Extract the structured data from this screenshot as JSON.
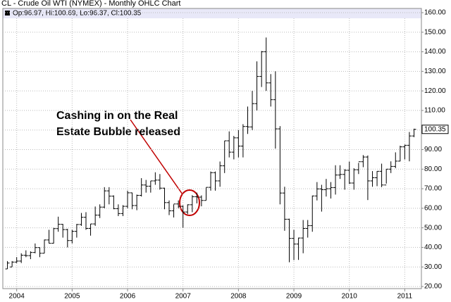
{
  "chart_data": {
    "type": "ohlc",
    "title": "CL - Crude Oil WTI (NYMEX) - Monthly OHLC Chart",
    "header": "Op:96.97, Hi:100.69, Lo:96.37, Cl:100.35",
    "annotation": [
      "Cashing in on the Real",
      "Estate Bubble released"
    ],
    "color": "#000000",
    "grid": true,
    "xlim": [
      2003.75,
      2011.3
    ],
    "xticks": [
      2004,
      2005,
      2006,
      2007,
      2008,
      2009,
      2010,
      2011
    ],
    "ylim": [
      20,
      160
    ],
    "yticks": [
      {
        "value": 20,
        "label": "20.00"
      },
      {
        "value": 30,
        "label": "30.00"
      },
      {
        "value": 40,
        "label": "40.00"
      },
      {
        "value": 50,
        "label": "50.00"
      },
      {
        "value": 60,
        "label": "60.00"
      },
      {
        "value": 70,
        "label": "70.00"
      },
      {
        "value": 80,
        "label": "80.00"
      },
      {
        "value": 90,
        "label": "90.00"
      },
      {
        "value": 100,
        "label": "100.00"
      },
      {
        "value": 110,
        "label": "110.00"
      },
      {
        "value": 120,
        "label": "120.00"
      },
      {
        "value": 130,
        "label": "130.00"
      },
      {
        "value": 140,
        "label": "140.00"
      },
      {
        "value": 150,
        "label": "150.00"
      },
      {
        "value": 160,
        "label": "160.00"
      }
    ],
    "last_label": "100.35",
    "x": [
      2003.833,
      2003.917,
      2004,
      2004.083,
      2004.167,
      2004.25,
      2004.333,
      2004.417,
      2004.5,
      2004.583,
      2004.667,
      2004.75,
      2004.833,
      2004.917,
      2005,
      2005.083,
      2005.167,
      2005.25,
      2005.333,
      2005.417,
      2005.5,
      2005.583,
      2005.667,
      2005.75,
      2005.833,
      2005.917,
      2006,
      2006.083,
      2006.167,
      2006.25,
      2006.333,
      2006.417,
      2006.5,
      2006.583,
      2006.667,
      2006.75,
      2006.833,
      2006.917,
      2007,
      2007.083,
      2007.167,
      2007.25,
      2007.333,
      2007.417,
      2007.5,
      2007.583,
      2007.667,
      2007.75,
      2007.833,
      2007.917,
      2008,
      2008.083,
      2008.167,
      2008.25,
      2008.333,
      2008.417,
      2008.5,
      2008.583,
      2008.667,
      2008.75,
      2008.833,
      2008.917,
      2009,
      2009.083,
      2009.167,
      2009.25,
      2009.333,
      2009.417,
      2009.5,
      2009.583,
      2009.667,
      2009.75,
      2009.833,
      2009.917,
      2010,
      2010.083,
      2010.167,
      2010.25,
      2010.333,
      2010.417,
      2010.5,
      2010.583,
      2010.667,
      2010.75,
      2010.833,
      2010.917,
      2011,
      2011.083,
      2011.167
    ],
    "open": [
      29,
      30,
      32.5,
      33,
      36,
      35.8,
      37.4,
      39.9,
      37,
      43.8,
      42.1,
      49.6,
      51.8,
      49.1,
      43.5,
      48.2,
      51.7,
      55.4,
      49.7,
      52,
      56.5,
      60.6,
      68.9,
      66.2,
      59.8,
      57.3,
      61,
      67.9,
      61.4,
      66.6,
      71.9,
      71.3,
      74,
      74.4,
      70.3,
      62.9,
      58.7,
      62.2,
      61,
      58.1,
      61.8,
      65.9,
      65.7,
      64,
      70.7,
      78.2,
      74,
      81.7,
      94.5,
      88.7,
      96,
      91.8,
      101.8,
      101.6,
      113.5,
      127.4,
      140,
      124.1,
      115.5,
      100.6,
      67.8,
      54.4,
      44.6,
      41.7,
      44.8,
      49.7,
      51.1,
      66.3,
      69.9,
      69.5,
      70,
      70.6,
      77,
      77.3,
      79.4,
      72.9,
      79.7,
      83.8,
      86.2,
      74,
      75.6,
      78.9,
      71.9,
      80,
      81.4,
      84.1,
      91.4,
      92.2,
      96.97
    ],
    "high": [
      33,
      33,
      35,
      37,
      38.5,
      38,
      42,
      40,
      44,
      49,
      50,
      55.7,
      52,
      49.5,
      49,
      52,
      57.6,
      58,
      52,
      60.9,
      62,
      70.8,
      70.8,
      66.6,
      62,
      61.6,
      69,
      68,
      67,
      75.4,
      74.5,
      74,
      78.4,
      77.5,
      70.5,
      64,
      62,
      64,
      61.5,
      62,
      66.7,
      68,
      66.6,
      70.6,
      78.8,
      78.8,
      83.9,
      94.5,
      99.3,
      97,
      100,
      103,
      112,
      120,
      135.1,
      140.4,
      147.3,
      128.6,
      130,
      102,
      71,
      54.7,
      49,
      45,
      54,
      54,
      66.5,
      73.4,
      72,
      75,
      73.4,
      82,
      82,
      80,
      83.9,
      80.5,
      83.2,
      87.2,
      87,
      79,
      79,
      82.8,
      80,
      84,
      88.6,
      92,
      92.6,
      99,
      100.69
    ],
    "low": [
      29,
      30,
      32,
      32,
      35,
      34,
      37,
      35,
      37,
      42,
      42,
      48,
      45,
      40,
      42,
      45,
      51,
      49,
      46,
      51,
      55,
      60,
      62,
      59.5,
      56,
      56,
      60,
      59.5,
      59,
      66,
      68,
      68,
      72,
      69.5,
      59.5,
      56.5,
      55.3,
      60,
      50,
      57,
      58,
      62.5,
      61,
      64,
      69,
      69,
      71,
      78,
      86,
      85,
      86,
      86,
      98,
      100,
      110,
      122,
      120,
      112,
      90.5,
      62,
      48.5,
      32.4,
      33.5,
      33.6,
      37,
      45,
      48,
      64,
      58.3,
      66,
      65,
      67,
      75,
      69.5,
      72.4,
      69.5,
      77.5,
      81,
      64.2,
      71,
      71.3,
      70.8,
      72.6,
      78,
      80.5,
      84,
      85,
      84,
      96.37
    ],
    "close": [
      32,
      32.5,
      33,
      36,
      35.8,
      37.4,
      39.9,
      37,
      43.8,
      42.1,
      49.6,
      51.8,
      49.1,
      43.5,
      48.2,
      51.7,
      55.4,
      49.7,
      52,
      56.5,
      60.6,
      68.9,
      66.2,
      59.8,
      57.3,
      61,
      67.9,
      61.4,
      66.6,
      71.9,
      71.3,
      74,
      74.4,
      70.3,
      62.9,
      58.7,
      62.2,
      61,
      58.1,
      61.8,
      65.9,
      65.7,
      64,
      70.7,
      78.2,
      74,
      81.7,
      94.5,
      88.7,
      96,
      91.8,
      101.8,
      101.6,
      113.5,
      127.4,
      140,
      124.1,
      115.5,
      100.6,
      67.8,
      54.4,
      44.6,
      41.7,
      44.8,
      49.7,
      51.1,
      66.3,
      69.9,
      69.5,
      70,
      70.6,
      77,
      77.3,
      79.4,
      72.9,
      79.7,
      83.8,
      86.2,
      74,
      75.6,
      78.9,
      71.9,
      80,
      81.4,
      84.1,
      91.4,
      92.2,
      96.97,
      100.35
    ]
  }
}
